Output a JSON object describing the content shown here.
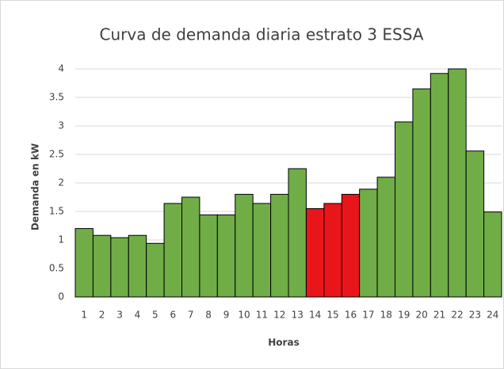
{
  "chart_data": {
    "type": "bar",
    "title": "Curva de demanda diaria estrato 3 ESSA",
    "x_label": "Horas",
    "y_label": "Demanda en kW",
    "categories": [
      "1",
      "2",
      "3",
      "4",
      "5",
      "6",
      "7",
      "8",
      "9",
      "10",
      "11",
      "12",
      "13",
      "14",
      "15",
      "16",
      "17",
      "18",
      "19",
      "20",
      "21",
      "22",
      "23",
      "24"
    ],
    "values": [
      1.2,
      1.08,
      1.04,
      1.08,
      0.94,
      1.64,
      1.75,
      1.44,
      1.44,
      1.8,
      1.64,
      1.8,
      2.25,
      1.55,
      1.64,
      1.8,
      1.89,
      2.1,
      3.07,
      3.65,
      3.92,
      4.0,
      2.56,
      1.49
    ],
    "colors": [
      "#70ad47",
      "#70ad47",
      "#70ad47",
      "#70ad47",
      "#70ad47",
      "#70ad47",
      "#70ad47",
      "#70ad47",
      "#70ad47",
      "#70ad47",
      "#70ad47",
      "#70ad47",
      "#70ad47",
      "#e8161b",
      "#e8161b",
      "#e8161b",
      "#70ad47",
      "#70ad47",
      "#70ad47",
      "#70ad47",
      "#70ad47",
      "#70ad47",
      "#70ad47",
      "#70ad47"
    ],
    "ylim": [
      0,
      4
    ],
    "yticks": [
      0,
      0.5,
      1,
      1.5,
      2,
      2.5,
      3,
      3.5,
      4
    ],
    "grid": true
  }
}
